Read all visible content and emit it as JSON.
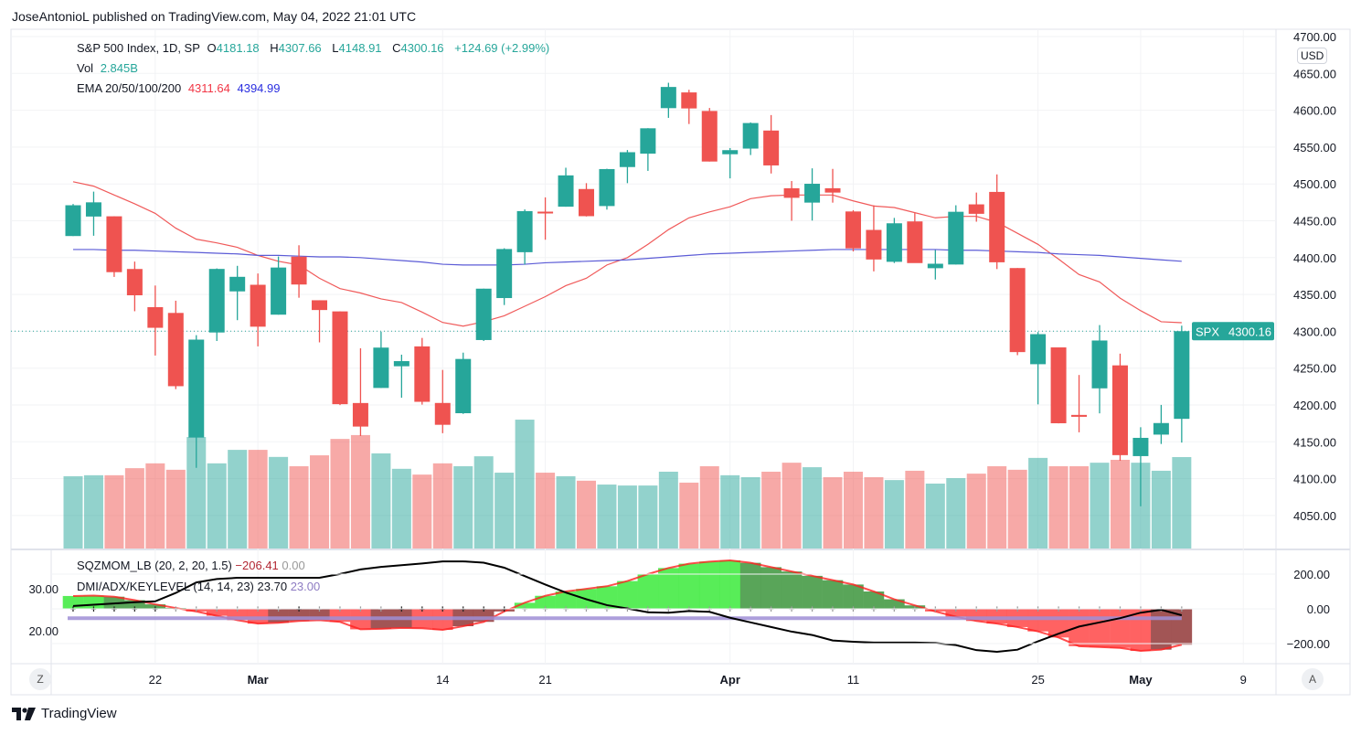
{
  "publisher_line": "JoseAntonioL published on TradingView.com, May 04, 2022 21:01 UTC",
  "legend": {
    "symbol": "S&P 500 Index, 1D, SP",
    "o_label": "O",
    "o": "4181.18",
    "h_label": "H",
    "h": "4307.66",
    "l_label": "L",
    "l": "4148.91",
    "c_label": "C",
    "c": "4300.16",
    "change": "+124.69 (+2.99%)",
    "vol_label": "Vol",
    "vol": "2.845B",
    "ema_label": "EMA 20/50/100/200",
    "ema_a": "4311.64",
    "ema_b": "4394.99"
  },
  "indicators": {
    "sqz_label": "SQZMOM_LB (20, 2, 20, 1.5)",
    "sqz_value": "−206.41",
    "sqz_zero": "0.00",
    "dmi_label": "DMI/ADX/KEYLEVEL (14, 14, 23)",
    "adx_value": "23.70",
    "key_value": "23.00"
  },
  "currency": "USD",
  "last_price": {
    "symbol": "SPX",
    "value": "4300.16"
  },
  "price_axis": [
    "4700.00",
    "4650.00",
    "4600.00",
    "4550.00",
    "4500.00",
    "4450.00",
    "4400.00",
    "4350.00",
    "4300.00",
    "4250.00",
    "4200.00",
    "4150.00",
    "4100.00",
    "4050.00"
  ],
  "momentum_axis": [
    "200.00",
    "0.00",
    "−200.00"
  ],
  "adx_axis": [
    "30.00",
    "20.00"
  ],
  "time_axis": [
    "22",
    "Mar",
    "14",
    "21",
    "Apr",
    "11",
    "25",
    "May",
    "9"
  ],
  "buttons": {
    "left": "Z",
    "right": "A"
  },
  "brand": "TradingView",
  "colors": {
    "up": "#26a69a",
    "down": "#ef5350",
    "ema_a": "#f05a5a",
    "ema_b": "#5b5bd6",
    "key_level": "#9f8fd6",
    "adx": "#000000"
  },
  "chart_data": {
    "type": "candlestick",
    "title": "S&P 500 Index, 1D, SP",
    "ylim": [
      4020,
      4710
    ],
    "grid": true,
    "candles": [
      {
        "d": "2022-02-15",
        "o": 4429.28,
        "h": 4472.77,
        "l": 4429.28,
        "c": 4471.07,
        "v": 2.25
      },
      {
        "d": "2022-02-16",
        "o": 4455.75,
        "h": 4489.55,
        "l": 4429.68,
        "c": 4475.01,
        "v": 2.28
      },
      {
        "d": "2022-02-17",
        "o": 4456.06,
        "h": 4456.06,
        "l": 4373.81,
        "c": 4380.26,
        "v": 2.28
      },
      {
        "d": "2022-02-18",
        "o": 4384.57,
        "h": 4394.6,
        "l": 4327.22,
        "c": 4348.87,
        "v": 2.5
      },
      {
        "d": "2022-02-22",
        "o": 4332.74,
        "h": 4362.12,
        "l": 4267.11,
        "c": 4304.76,
        "v": 2.65
      },
      {
        "d": "2022-02-23",
        "o": 4324.93,
        "h": 4341.51,
        "l": 4221.51,
        "c": 4225.5,
        "v": 2.45
      },
      {
        "d": "2022-02-24",
        "o": 4155.77,
        "h": 4294.73,
        "l": 4114.65,
        "c": 4288.7,
        "v": 3.47
      },
      {
        "d": "2022-02-25",
        "o": 4298.38,
        "h": 4385.34,
        "l": 4286.83,
        "c": 4384.65,
        "v": 2.65
      },
      {
        "d": "2022-02-28",
        "o": 4354.17,
        "h": 4388.84,
        "l": 4315.12,
        "c": 4373.94,
        "v": 3.07
      },
      {
        "d": "2022-03-01",
        "o": 4363.14,
        "h": 4378.45,
        "l": 4279.54,
        "c": 4306.26,
        "v": 3.07
      },
      {
        "d": "2022-03-02",
        "o": 4322.56,
        "h": 4401.48,
        "l": 4322.56,
        "c": 4386.54,
        "v": 2.85
      },
      {
        "d": "2022-03-03",
        "o": 4401.31,
        "h": 4416.78,
        "l": 4345.56,
        "c": 4363.49,
        "v": 2.56
      },
      {
        "d": "2022-03-04",
        "o": 4342.12,
        "h": 4342.12,
        "l": 4284.98,
        "c": 4328.87,
        "v": 2.9
      },
      {
        "d": "2022-03-07",
        "o": 4327.01,
        "h": 4327.01,
        "l": 4199.85,
        "c": 4201.09,
        "v": 3.41
      },
      {
        "d": "2022-03-08",
        "o": 4202.66,
        "h": 4276.94,
        "l": 4157.87,
        "c": 4170.7,
        "v": 3.53
      },
      {
        "d": "2022-03-09",
        "o": 4223.1,
        "h": 4299.4,
        "l": 4223.1,
        "c": 4277.88,
        "v": 2.96
      },
      {
        "d": "2022-03-10",
        "o": 4252.55,
        "h": 4268.28,
        "l": 4209.8,
        "c": 4259.52,
        "v": 2.48
      },
      {
        "d": "2022-03-11",
        "o": 4279.5,
        "h": 4291.01,
        "l": 4200.49,
        "c": 4204.31,
        "v": 2.3
      },
      {
        "d": "2022-03-14",
        "o": 4202.75,
        "h": 4247.57,
        "l": 4161.72,
        "c": 4173.11,
        "v": 2.65
      },
      {
        "d": "2022-03-15",
        "o": 4188.82,
        "h": 4271.05,
        "l": 4187.9,
        "c": 4262.45,
        "v": 2.56
      },
      {
        "d": "2022-03-16",
        "o": 4288.14,
        "h": 4357.86,
        "l": 4286.83,
        "c": 4357.86,
        "v": 2.87
      },
      {
        "d": "2022-03-17",
        "o": 4345.11,
        "h": 4412.67,
        "l": 4335.65,
        "c": 4411.67,
        "v": 2.36
      },
      {
        "d": "2022-03-18",
        "o": 4407.34,
        "h": 4465.4,
        "l": 4390.57,
        "c": 4463.12,
        "v": 4.01
      },
      {
        "d": "2022-03-21",
        "o": 4462.4,
        "h": 4481.75,
        "l": 4424.3,
        "c": 4461.18,
        "v": 2.36
      },
      {
        "d": "2022-03-22",
        "o": 4469.1,
        "h": 4522.0,
        "l": 4469.1,
        "c": 4511.61,
        "v": 2.25
      },
      {
        "d": "2022-03-23",
        "o": 4493.1,
        "h": 4501.07,
        "l": 4455.81,
        "c": 4456.24,
        "v": 2.11
      },
      {
        "d": "2022-03-24",
        "o": 4469.98,
        "h": 4520.58,
        "l": 4465.17,
        "c": 4520.16,
        "v": 1.99
      },
      {
        "d": "2022-03-25",
        "o": 4522.91,
        "h": 4546.03,
        "l": 4501.07,
        "c": 4543.06,
        "v": 1.96
      },
      {
        "d": "2022-03-28",
        "o": 4541.09,
        "h": 4575.65,
        "l": 4517.69,
        "c": 4575.52,
        "v": 1.96
      },
      {
        "d": "2022-03-29",
        "o": 4602.86,
        "h": 4637.3,
        "l": 4589.66,
        "c": 4631.6,
        "v": 2.39
      },
      {
        "d": "2022-03-30",
        "o": 4624.2,
        "h": 4627.77,
        "l": 4581.32,
        "c": 4602.45,
        "v": 2.05
      },
      {
        "d": "2022-03-31",
        "o": 4599.02,
        "h": 4603.07,
        "l": 4530.41,
        "c": 4530.41,
        "v": 2.56
      },
      {
        "d": "2022-04-01",
        "o": 4540.32,
        "h": 4548.7,
        "l": 4507.57,
        "c": 4545.86,
        "v": 2.28
      },
      {
        "d": "2022-04-04",
        "o": 4547.97,
        "h": 4583.5,
        "l": 4539.21,
        "c": 4582.64,
        "v": 2.22
      },
      {
        "d": "2022-04-05",
        "o": 4572.45,
        "h": 4593.45,
        "l": 4514.17,
        "c": 4525.12,
        "v": 2.39
      },
      {
        "d": "2022-04-06",
        "o": 4494.17,
        "h": 4503.94,
        "l": 4450.04,
        "c": 4481.15,
        "v": 2.67
      },
      {
        "d": "2022-04-07",
        "o": 4474.65,
        "h": 4521.16,
        "l": 4450.3,
        "c": 4500.21,
        "v": 2.53
      },
      {
        "d": "2022-04-08",
        "o": 4494.15,
        "h": 4520.41,
        "l": 4474.6,
        "c": 4488.28,
        "v": 2.22
      },
      {
        "d": "2022-04-11",
        "o": 4462.64,
        "h": 4464.35,
        "l": 4408.38,
        "c": 4412.53,
        "v": 2.39
      },
      {
        "d": "2022-04-12",
        "o": 4437.59,
        "h": 4471.0,
        "l": 4381.34,
        "c": 4397.45,
        "v": 2.22
      },
      {
        "d": "2022-04-13",
        "o": 4394.3,
        "h": 4453.92,
        "l": 4392.7,
        "c": 4446.59,
        "v": 2.13
      },
      {
        "d": "2022-04-14",
        "o": 4449.12,
        "h": 4460.46,
        "l": 4394.3,
        "c": 4392.59,
        "v": 2.42
      },
      {
        "d": "2022-04-18",
        "o": 4385.63,
        "h": 4410.31,
        "l": 4370.3,
        "c": 4391.69,
        "v": 2.02
      },
      {
        "d": "2022-04-19",
        "o": 4390.63,
        "h": 4471.03,
        "l": 4390.63,
        "c": 4462.21,
        "v": 2.19
      },
      {
        "d": "2022-04-20",
        "o": 4472.26,
        "h": 4488.29,
        "l": 4448.76,
        "c": 4459.45,
        "v": 2.33
      },
      {
        "d": "2022-04-21",
        "o": 4489.17,
        "h": 4512.94,
        "l": 4384.47,
        "c": 4393.66,
        "v": 2.56
      },
      {
        "d": "2022-04-22",
        "o": 4385.83,
        "h": 4385.83,
        "l": 4267.62,
        "c": 4271.78,
        "v": 2.45
      },
      {
        "d": "2022-04-25",
        "o": 4255.34,
        "h": 4299.02,
        "l": 4200.82,
        "c": 4296.12,
        "v": 2.82
      },
      {
        "d": "2022-04-26",
        "o": 4278.14,
        "h": 4278.14,
        "l": 4175.04,
        "c": 4175.2,
        "v": 2.56
      },
      {
        "d": "2022-04-27",
        "o": 4186.52,
        "h": 4240.71,
        "l": 4162.9,
        "c": 4183.96,
        "v": 2.56
      },
      {
        "d": "2022-04-28",
        "o": 4222.58,
        "h": 4308.45,
        "l": 4188.63,
        "c": 4287.5,
        "v": 2.67
      },
      {
        "d": "2022-04-29",
        "o": 4253.75,
        "h": 4269.68,
        "l": 4124.28,
        "c": 4131.93,
        "v": 2.76
      },
      {
        "d": "2022-05-02",
        "o": 4130.61,
        "h": 4169.81,
        "l": 4062.51,
        "c": 4155.38,
        "v": 2.67
      },
      {
        "d": "2022-05-03",
        "o": 4159.78,
        "h": 4200.1,
        "l": 4147.08,
        "c": 4175.48,
        "v": 2.42
      },
      {
        "d": "2022-05-04",
        "o": 4181.18,
        "h": 4307.66,
        "l": 4148.91,
        "c": 4300.16,
        "v": 2.845
      }
    ],
    "ema_a": [
      4503,
      4497,
      4485,
      4473,
      4460,
      4440,
      4425,
      4420,
      4414,
      4403,
      4395,
      4390,
      4372,
      4358,
      4352,
      4344,
      4339,
      4326,
      4312,
      4307,
      4313,
      4321,
      4334,
      4347,
      4362,
      4372,
      4390,
      4400,
      4418,
      4438,
      4454,
      4462,
      4469,
      4480,
      4484,
      4485,
      4485,
      4485,
      4477,
      4470,
      4468,
      4461,
      4454,
      4456,
      4456,
      4448,
      4433,
      4418,
      4398,
      4377,
      4367,
      4345,
      4328,
      4313,
      4311.64
    ],
    "ema_b": [
      4411,
      4411,
      4410,
      4410,
      4409,
      4408,
      4407,
      4406,
      4405,
      4403,
      4403,
      4402,
      4401,
      4401,
      4400,
      4398,
      4396,
      4394,
      4391,
      4390,
      4390,
      4390,
      4391,
      4393,
      4394,
      4395,
      4396,
      4397,
      4399,
      4401,
      4403,
      4405,
      4406,
      4407,
      4408,
      4409,
      4410,
      4411,
      4411,
      4411,
      4411,
      4411,
      4411,
      4410,
      4410,
      4409,
      4408,
      4407,
      4405,
      4404,
      4403,
      4401,
      4399,
      4397,
      4394.99
    ],
    "momentum": [
      74,
      76,
      70,
      50,
      26,
      5,
      -15,
      -40,
      -65,
      -85,
      -80,
      -70,
      -65,
      -75,
      -118,
      -115,
      -110,
      -112,
      -121,
      -100,
      -75,
      -15,
      35,
      75,
      100,
      115,
      130,
      160,
      200,
      235,
      260,
      272,
      279,
      265,
      240,
      215,
      190,
      165,
      140,
      100,
      55,
      20,
      -15,
      -45,
      -70,
      -85,
      -105,
      -130,
      -165,
      -215,
      -220,
      -225,
      -242,
      -235,
      -206.41
    ],
    "momentum_ylim": [
      -290,
      290
    ],
    "adx": [
      25.9,
      26.2,
      26.5,
      26.8,
      27,
      29,
      31.5,
      32.3,
      32.6,
      32.6,
      32.6,
      32.6,
      32.6,
      33.5,
      34.6,
      35.2,
      35.6,
      36,
      36.5,
      36.5,
      36.2,
      35,
      33,
      31,
      29.1,
      27.5,
      26.1,
      25.3,
      24.4,
      24.3,
      24.7,
      24.5,
      23.1,
      22,
      20.9,
      19.8,
      19,
      17.7,
      17.4,
      17.2,
      17.2,
      17.2,
      17.1,
      16.6,
      15.4,
      15,
      15.5,
      17.5,
      19.3,
      21,
      22,
      23,
      24.3,
      25,
      23.7
    ],
    "key_level": 23,
    "squeeze_on": [
      1,
      1,
      1,
      1,
      1,
      0,
      0,
      0,
      0,
      0,
      0,
      1,
      0,
      0,
      0,
      0,
      1,
      1,
      1,
      1,
      1,
      1,
      0,
      0,
      0,
      0,
      0,
      0,
      0,
      0,
      0,
      0,
      0,
      0,
      0,
      0,
      0,
      0,
      0,
      0,
      0,
      0,
      0,
      0,
      0,
      0,
      0,
      0,
      0,
      0,
      0,
      0,
      0,
      0,
      0
    ]
  }
}
